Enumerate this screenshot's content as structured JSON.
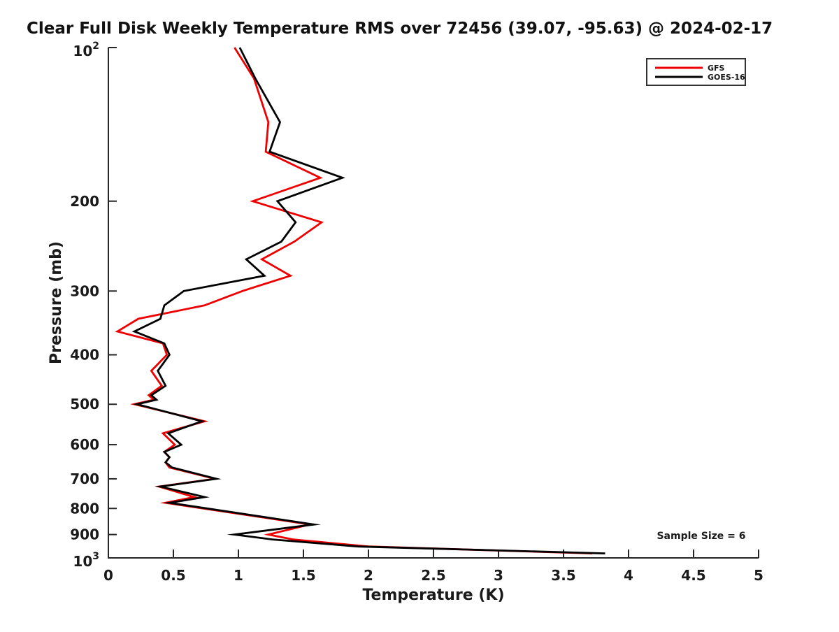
{
  "title": "Clear Full Disk Weekly Temperature RMS over 72456 (39.07, -95.63) @ 2024-02-17",
  "annotation": "Sample Size = 6",
  "legend": {
    "position": "top-right",
    "entries": [
      {
        "label": "GFS",
        "color": "#ee0000"
      },
      {
        "label": "GOES-16",
        "color": "#000000"
      }
    ]
  },
  "chart_data": {
    "type": "line",
    "title": "Clear Full Disk Weekly Temperature RMS over 72456 (39.07, -95.63) @ 2024-02-17",
    "xlabel": "Temperature (K)",
    "ylabel": "Pressure (mb)",
    "xlim": [
      0,
      5
    ],
    "ylim": [
      100,
      1000
    ],
    "yscale": "log10",
    "y_inverted": true,
    "grid": false,
    "legend_position": "top-right",
    "annotation": "Sample Size = 6",
    "x_ticks": [
      0,
      0.5,
      1,
      1.5,
      2,
      2.5,
      3,
      3.5,
      4,
      4.5,
      5
    ],
    "x_tick_labels": [
      "0",
      "0.5",
      "1",
      "1.5",
      "2",
      "2.5",
      "3",
      "3.5",
      "4",
      "4.5",
      "5"
    ],
    "y_ticks": [
      100,
      200,
      300,
      400,
      500,
      600,
      700,
      800,
      900,
      1000
    ],
    "y_tick_labels": [
      "10^2",
      "200",
      "300",
      "400",
      "500",
      "600",
      "700",
      "800",
      "900",
      "10^3"
    ],
    "pressure_mb": [
      100,
      115,
      140,
      160,
      180,
      200,
      220,
      240,
      260,
      280,
      300,
      320,
      340,
      360,
      380,
      400,
      430,
      460,
      480,
      490,
      500,
      540,
      570,
      600,
      620,
      635,
      650,
      665,
      700,
      725,
      760,
      780,
      860,
      900,
      920,
      950,
      980
    ],
    "series": [
      {
        "name": "GFS",
        "color": "#ee0000",
        "values": [
          0.97,
          1.12,
          1.23,
          1.21,
          1.63,
          1.11,
          1.64,
          1.43,
          1.18,
          1.4,
          1.03,
          0.74,
          0.23,
          0.07,
          0.42,
          0.45,
          0.33,
          0.41,
          0.31,
          0.35,
          0.2,
          0.74,
          0.42,
          0.51,
          0.43,
          0.47,
          0.44,
          0.47,
          0.82,
          0.39,
          0.66,
          0.44,
          1.55,
          1.23,
          1.42,
          2.0,
          3.72
        ]
      },
      {
        "name": "GOES-16",
        "color": "#000000",
        "values": [
          1.01,
          1.13,
          1.32,
          1.24,
          1.8,
          1.3,
          1.44,
          1.33,
          1.06,
          1.2,
          0.58,
          0.43,
          0.4,
          0.2,
          0.43,
          0.47,
          0.38,
          0.44,
          0.33,
          0.37,
          0.22,
          0.72,
          0.46,
          0.56,
          0.43,
          0.47,
          0.44,
          0.49,
          0.83,
          0.4,
          0.74,
          0.47,
          1.58,
          0.97,
          1.26,
          1.92,
          3.82
        ]
      }
    ]
  }
}
